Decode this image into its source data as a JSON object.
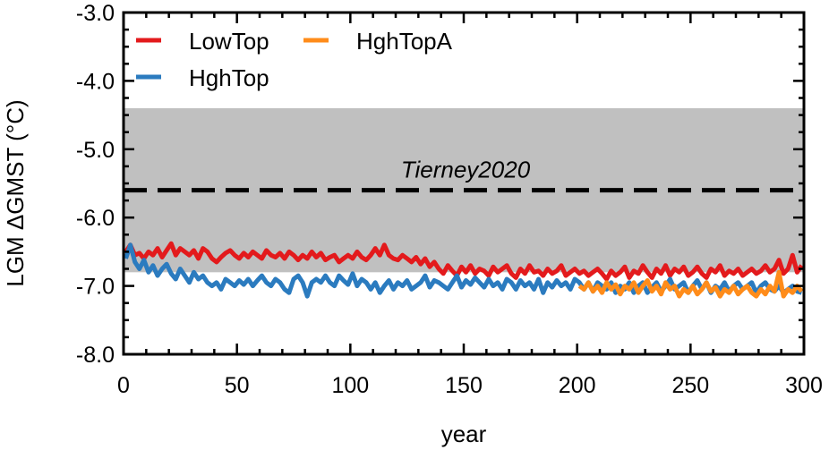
{
  "chart_data": {
    "type": "line",
    "xlabel": "year",
    "ylabel": "LGM ΔGMST (°C)",
    "xlim": [
      0,
      300
    ],
    "ylim": [
      -8.0,
      -3.0
    ],
    "x_ticks": [
      0,
      50,
      100,
      150,
      200,
      250,
      300
    ],
    "x_tick_labels": [
      "0",
      "50",
      "100",
      "150",
      "200",
      "250",
      "300"
    ],
    "y_ticks": [
      -8.0,
      -7.0,
      -6.0,
      -5.0,
      -4.0,
      -3.0
    ],
    "y_tick_labels": [
      "-8.0",
      "-7.0",
      "-6.0",
      "-5.0",
      "-4.0",
      "-3.0"
    ],
    "grid": false,
    "legend_position": "top-left",
    "reference": {
      "label": "Tierney2020",
      "value": -5.6,
      "band": [
        -6.8,
        -4.4
      ],
      "band_color": "#c0c0c0",
      "line_color": "#000000"
    },
    "series": [
      {
        "name": "LowTop",
        "color": "#e31a1c",
        "x_start": 1,
        "x_step": 2,
        "values": [
          -6.5,
          -6.4,
          -6.55,
          -6.52,
          -6.6,
          -6.5,
          -6.55,
          -6.45,
          -6.58,
          -6.48,
          -6.38,
          -6.55,
          -6.45,
          -6.5,
          -6.55,
          -6.48,
          -6.6,
          -6.45,
          -6.5,
          -6.6,
          -6.65,
          -6.58,
          -6.52,
          -6.48,
          -6.55,
          -6.6,
          -6.52,
          -6.58,
          -6.5,
          -6.55,
          -6.6,
          -6.48,
          -6.55,
          -6.58,
          -6.52,
          -6.6,
          -6.5,
          -6.55,
          -6.62,
          -6.55,
          -6.6,
          -6.5,
          -6.58,
          -6.52,
          -6.62,
          -6.58,
          -6.55,
          -6.65,
          -6.6,
          -6.55,
          -6.6,
          -6.5,
          -6.58,
          -6.62,
          -6.55,
          -6.45,
          -6.55,
          -6.4,
          -6.55,
          -6.6,
          -6.62,
          -6.55,
          -6.6,
          -6.65,
          -6.58,
          -6.68,
          -6.6,
          -6.72,
          -6.65,
          -6.75,
          -6.82,
          -6.7,
          -6.78,
          -6.85,
          -6.72,
          -6.8,
          -6.7,
          -6.82,
          -6.75,
          -6.78,
          -6.85,
          -6.72,
          -6.8,
          -6.75,
          -6.7,
          -6.82,
          -6.88,
          -6.75,
          -6.82,
          -6.7,
          -6.8,
          -6.78,
          -6.85,
          -6.75,
          -6.82,
          -6.78,
          -6.7,
          -6.85,
          -6.8,
          -6.75,
          -6.82,
          -6.78,
          -6.85,
          -6.8,
          -6.75,
          -6.82,
          -6.9,
          -6.78,
          -6.85,
          -6.8,
          -6.72,
          -6.88,
          -6.78,
          -6.82,
          -6.7,
          -6.8,
          -6.88,
          -6.75,
          -6.82,
          -6.7,
          -6.85,
          -6.75,
          -6.8,
          -6.72,
          -6.85,
          -6.8,
          -6.72,
          -6.82,
          -6.88,
          -6.75,
          -6.8,
          -6.7,
          -6.85,
          -6.78,
          -6.82,
          -6.75,
          -6.85,
          -6.8,
          -6.75,
          -6.82,
          -6.78,
          -6.7,
          -6.8,
          -6.75,
          -6.62,
          -6.82,
          -6.75,
          -6.55,
          -6.8,
          -6.7
        ]
      },
      {
        "name": "HghTop",
        "color": "#2b7bbf",
        "x_start": 1,
        "x_step": 2,
        "values": [
          -6.6,
          -6.4,
          -6.65,
          -6.75,
          -6.62,
          -6.8,
          -6.7,
          -6.85,
          -6.75,
          -6.68,
          -6.82,
          -6.9,
          -6.75,
          -6.85,
          -6.95,
          -6.8,
          -6.9,
          -6.85,
          -6.95,
          -7.0,
          -6.95,
          -7.05,
          -6.9,
          -6.95,
          -7.0,
          -6.92,
          -6.98,
          -6.9,
          -7.0,
          -6.92,
          -6.85,
          -6.95,
          -7.0,
          -6.9,
          -6.95,
          -7.05,
          -7.1,
          -6.9,
          -6.85,
          -6.95,
          -7.15,
          -6.95,
          -6.9,
          -6.95,
          -6.85,
          -6.95,
          -7.0,
          -6.85,
          -6.92,
          -6.98,
          -6.82,
          -7.0,
          -6.9,
          -6.95,
          -7.05,
          -6.95,
          -7.1,
          -7.0,
          -6.92,
          -7.05,
          -6.95,
          -7.0,
          -6.92,
          -7.05,
          -7.0,
          -6.95,
          -6.85,
          -7.02,
          -6.92,
          -6.95,
          -7.0,
          -7.05,
          -6.95,
          -6.85,
          -7.02,
          -6.92,
          -6.98,
          -6.88,
          -6.95,
          -7.02,
          -6.9,
          -7.0,
          -6.95,
          -7.05,
          -6.9,
          -6.95,
          -7.05,
          -6.92,
          -7.0,
          -6.95,
          -7.05,
          -6.9,
          -7.1,
          -6.95,
          -7.02,
          -6.92,
          -7.0,
          -6.95,
          -7.05,
          -6.9,
          -6.95,
          -7.05,
          -6.95,
          -7.08,
          -6.95,
          -7.0,
          -7.05,
          -6.95,
          -7.1,
          -7.0,
          -7.05,
          -6.95,
          -7.1,
          -7.0,
          -6.95,
          -7.1,
          -7.02,
          -6.95,
          -7.08,
          -7.0,
          -6.9,
          -7.05,
          -7.0,
          -6.95,
          -7.1,
          -7.0,
          -6.92,
          -7.05,
          -6.95,
          -7.1,
          -7.0,
          -7.05,
          -6.95,
          -7.08,
          -7.0,
          -6.95,
          -7.05,
          -7.0,
          -6.95,
          -7.1,
          -7.0,
          -6.95,
          -7.05,
          -7.08,
          -7.0,
          -7.1,
          -7.05,
          -7.0,
          -7.08,
          -7.1
        ]
      },
      {
        "name": "HghTopA",
        "color": "#ff8c1a",
        "x_start": 201,
        "x_step": 2,
        "values": [
          -7.0,
          -7.05,
          -6.95,
          -7.08,
          -7.0,
          -7.1,
          -6.95,
          -7.05,
          -6.98,
          -7.12,
          -7.0,
          -7.05,
          -6.95,
          -7.1,
          -7.0,
          -6.92,
          -7.08,
          -7.0,
          -7.12,
          -6.95,
          -7.05,
          -7.0,
          -7.15,
          -7.05,
          -7.1,
          -7.0,
          -7.12,
          -7.05,
          -6.95,
          -7.08,
          -7.02,
          -7.15,
          -7.05,
          -7.1,
          -7.0,
          -7.12,
          -7.05,
          -7.0,
          -7.1,
          -7.15,
          -7.05,
          -7.12,
          -7.0,
          -7.08,
          -6.8,
          -7.15,
          -7.05,
          -7.1,
          -7.0,
          -7.08
        ]
      }
    ]
  }
}
